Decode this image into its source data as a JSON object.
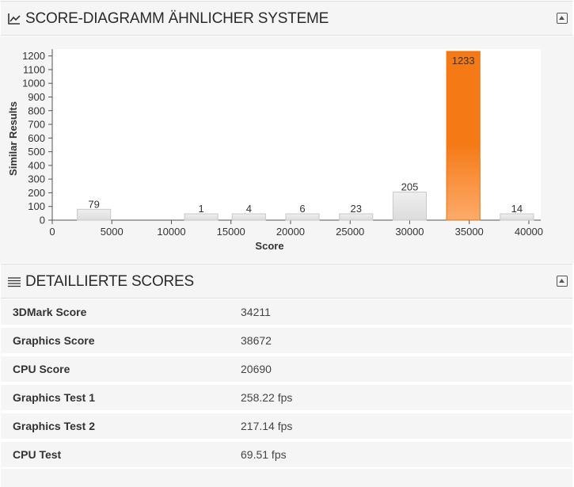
{
  "score_panel": {
    "title": "SCORE-DIAGRAMM ÄHNLICHER SYSTEME",
    "icon": "line-chart-icon",
    "collapse_icon": "collapse-icon"
  },
  "details_panel": {
    "title": "DETAILLIERTE SCORES",
    "icon": "list-icon",
    "collapse_icon": "collapse-icon"
  },
  "scores": [
    {
      "label": "3DMark Score",
      "value": "34211"
    },
    {
      "label": "Graphics Score",
      "value": "38672"
    },
    {
      "label": "CPU Score",
      "value": "20690"
    },
    {
      "label": "Graphics Test 1",
      "value": "258.22 fps"
    },
    {
      "label": "Graphics Test 2",
      "value": "217.14 fps"
    },
    {
      "label": "CPU Test",
      "value": "69.51 fps"
    }
  ],
  "chart_data": {
    "type": "bar",
    "xlabel": "Score",
    "ylabel": "Similar Results",
    "xlim": [
      0,
      41000
    ],
    "ylim": [
      0,
      1250
    ],
    "xticks": [
      0,
      5000,
      10000,
      15000,
      20000,
      25000,
      30000,
      35000,
      40000
    ],
    "yticks": [
      0,
      100,
      200,
      300,
      400,
      500,
      600,
      700,
      800,
      900,
      1000,
      1100,
      1200
    ],
    "bin_width": 2800,
    "bars": [
      {
        "x": 3500,
        "value": 79,
        "highlight": false
      },
      {
        "x": 12500,
        "value": 1,
        "highlight": false
      },
      {
        "x": 16500,
        "value": 4,
        "highlight": false
      },
      {
        "x": 21000,
        "value": 6,
        "highlight": false
      },
      {
        "x": 25500,
        "value": 23,
        "highlight": false
      },
      {
        "x": 30000,
        "value": 205,
        "highlight": false
      },
      {
        "x": 34500,
        "value": 1233,
        "highlight": true
      },
      {
        "x": 39000,
        "value": 14,
        "highlight": false
      }
    ],
    "colors": {
      "bar": "#e6e6e6",
      "highlight_top": "#f57a16",
      "highlight_bottom": "#fdab6b",
      "plot_bg": "#ffffff"
    }
  }
}
